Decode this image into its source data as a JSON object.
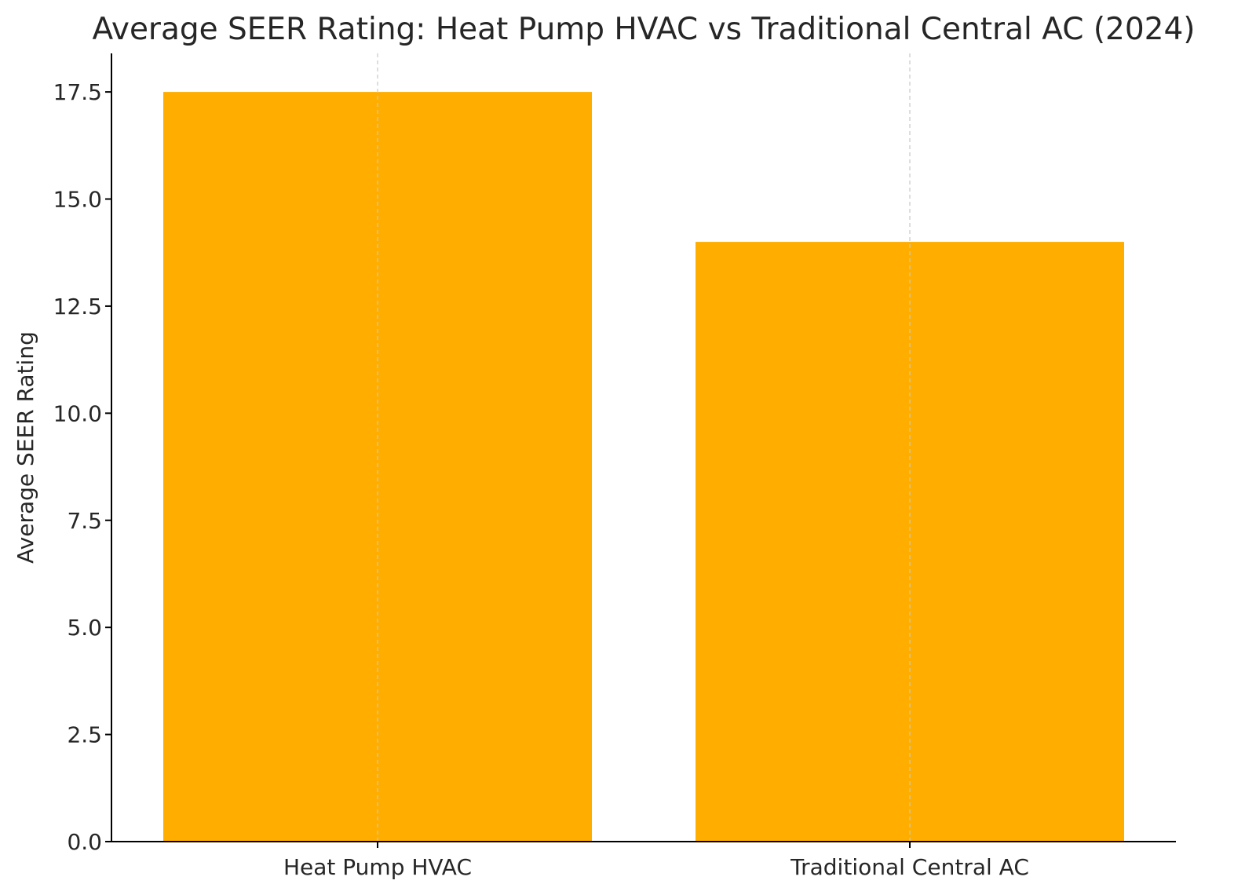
{
  "chart_data": {
    "type": "bar",
    "title": "Average SEER Rating: Heat Pump HVAC vs Traditional Central AC (2024)",
    "xlabel": "",
    "ylabel": "Average SEER Rating",
    "categories": [
      "Heat Pump HVAC",
      "Traditional Central AC"
    ],
    "values": [
      17.5,
      14.0
    ],
    "ylim": [
      0,
      18.4
    ],
    "yticks": [
      "0.0",
      "2.5",
      "5.0",
      "7.5",
      "10.0",
      "12.5",
      "15.0",
      "17.5"
    ],
    "ytick_values": [
      0,
      2.5,
      5,
      7.5,
      10,
      12.5,
      15,
      17.5
    ],
    "grid": "x-axis dashed",
    "bar_color": "#ffae00",
    "grid_color": "#c8c8c8",
    "axis_color": "#000000"
  }
}
